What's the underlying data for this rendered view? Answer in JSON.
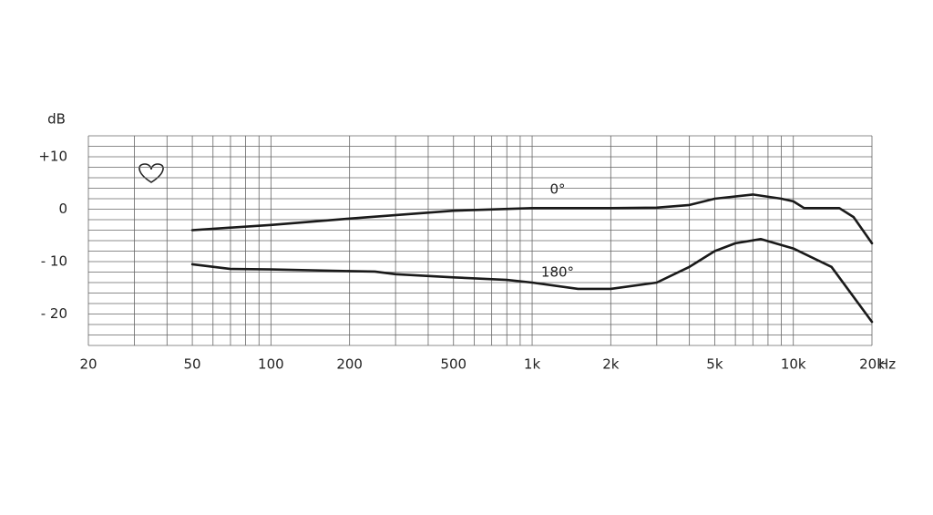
{
  "chart_data": {
    "type": "line",
    "xlabel": "Hz",
    "ylabel": "dB",
    "xscale": "log",
    "xlim": [
      20,
      20000
    ],
    "ylim": [
      -26,
      14
    ],
    "xticks": [
      20,
      50,
      100,
      200,
      500,
      {
        "value": 1000,
        "label": "1k"
      },
      {
        "value": 2000,
        "label": "2k"
      },
      {
        "value": 5000,
        "label": "5k"
      },
      {
        "value": 10000,
        "label": "10k"
      },
      {
        "value": 20000,
        "label": "20k"
      }
    ],
    "xgrid": [
      30,
      40,
      60,
      70,
      80,
      90,
      300,
      400,
      600,
      700,
      800,
      900,
      3000,
      4000,
      6000,
      7000,
      8000,
      9000
    ],
    "yticks": [
      {
        "value": 10,
        "label": "+10"
      },
      0,
      {
        "value": -10,
        "label": "- 10"
      },
      {
        "value": -20,
        "label": "- 20"
      }
    ],
    "ygrid": [
      14,
      12,
      8,
      6,
      4,
      2,
      -2,
      -4,
      -6,
      -8,
      -12,
      -14,
      -16,
      -18,
      -22,
      -24,
      -26
    ],
    "grid": true,
    "series": [
      {
        "name": "0°",
        "color": "#1a1a1a",
        "x": [
          50,
          100,
          200,
          500,
          1000,
          2000,
          3000,
          4000,
          5000,
          7000,
          9000,
          10000,
          11000,
          15000,
          17000,
          20000
        ],
        "values": [
          -4,
          -3,
          -1.8,
          -0.3,
          0.2,
          0.2,
          0.3,
          0.8,
          2,
          2.8,
          2,
          1.5,
          0.2,
          0.2,
          -1.5,
          -6.5
        ]
      },
      {
        "name": "180°",
        "color": "#1a1a1a",
        "x": [
          50,
          70,
          100,
          200,
          250,
          300,
          500,
          800,
          1000,
          1500,
          2000,
          3000,
          4000,
          5000,
          6000,
          7500,
          10000,
          14000,
          20000
        ],
        "values": [
          -10.5,
          -11.4,
          -11.5,
          -11.8,
          -11.9,
          -12.4,
          -13,
          -13.5,
          -14,
          -15.2,
          -15.2,
          -14,
          -11,
          -8,
          -6.5,
          -5.7,
          -7.5,
          -11,
          -21.5
        ]
      }
    ]
  }
}
